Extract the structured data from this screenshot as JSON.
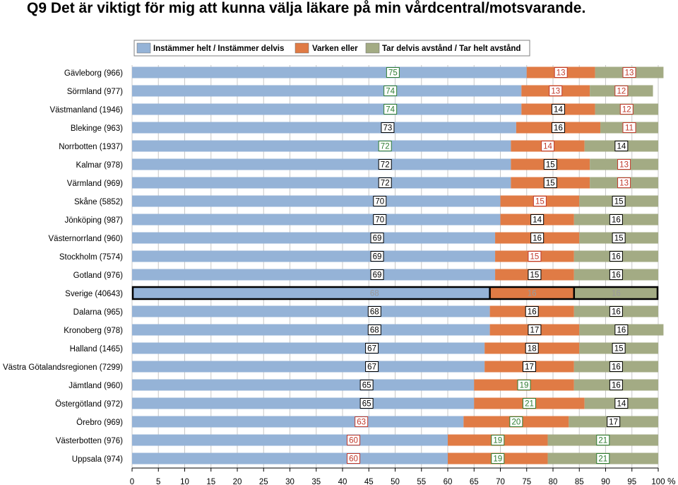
{
  "chart_data": {
    "type": "bar",
    "orientation": "horizontal",
    "stacked": true,
    "title": "Q9 Det är viktigt för mig att kunna välja läkare på min vårdcentral/motsvarande.",
    "xlabel": "%",
    "xlim": [
      0,
      100
    ],
    "xticks": [
      0,
      5,
      10,
      15,
      20,
      25,
      30,
      35,
      40,
      45,
      50,
      55,
      60,
      65,
      70,
      75,
      80,
      85,
      90,
      95,
      100
    ],
    "grid": true,
    "legend_position": "top",
    "highlight_category": "Sverige (40643)",
    "categories": [
      "Gävleborg (966)",
      "Sörmland (977)",
      "Västmanland (1946)",
      "Blekinge (963)",
      "Norrbotten (1937)",
      "Kalmar (978)",
      "Värmland (969)",
      "Skåne (5852)",
      "Jönköping (987)",
      "Västernorrland (960)",
      "Stockholm (7574)",
      "Gotland (976)",
      "Sverige (40643)",
      "Dalarna (965)",
      "Kronoberg (978)",
      "Halland (1465)",
      "Västra Götalandsregionen (7299)",
      "Jämtland (960)",
      "Östergötland (972)",
      "Örebro (969)",
      "Västerbotten (976)",
      "Uppsala (974)"
    ],
    "series": [
      {
        "name": "Instämmer helt / Instämmer delvis",
        "color": "#95B3D7",
        "values": [
          75,
          74,
          74,
          73,
          72,
          72,
          72,
          70,
          70,
          69,
          69,
          69,
          68,
          68,
          68,
          67,
          67,
          65,
          65,
          63,
          60,
          60
        ],
        "label_status": [
          "g",
          "g",
          "g",
          "n",
          "g",
          "n",
          "n",
          "n",
          "n",
          "n",
          "n",
          "n",
          "s",
          "n",
          "n",
          "n",
          "n",
          "n",
          "n",
          "r",
          "r",
          "r"
        ]
      },
      {
        "name": "Varken eller",
        "color": "#E07B45",
        "values": [
          13,
          13,
          14,
          16,
          14,
          15,
          15,
          15,
          14,
          16,
          15,
          15,
          16,
          16,
          17,
          18,
          17,
          19,
          21,
          20,
          19,
          19
        ],
        "label_status": [
          "r",
          "r",
          "n",
          "n",
          "r",
          "n",
          "n",
          "r",
          "n",
          "n",
          "r",
          "n",
          "s",
          "n",
          "n",
          "n",
          "n",
          "g",
          "g",
          "g",
          "g",
          "g"
        ]
      },
      {
        "name": "Tar delvis avstånd / Tar helt avstånd",
        "color": "#A3AB84",
        "values": [
          13,
          12,
          12,
          11,
          14,
          13,
          13,
          15,
          16,
          15,
          16,
          16,
          16,
          16,
          16,
          15,
          16,
          16,
          14,
          17,
          21,
          21
        ],
        "label_status": [
          "r",
          "r",
          "r",
          "r",
          "n",
          "r",
          "r",
          "n",
          "n",
          "n",
          "n",
          "n",
          "s",
          "n",
          "n",
          "n",
          "n",
          "n",
          "n",
          "n",
          "g",
          "g"
        ]
      }
    ]
  },
  "colors": {
    "label_normal": "#000000",
    "label_green": "#2E7D32",
    "label_red": "#C0392B",
    "label_sweden": "#9A9A9A",
    "grid": "#C8C8C8"
  }
}
